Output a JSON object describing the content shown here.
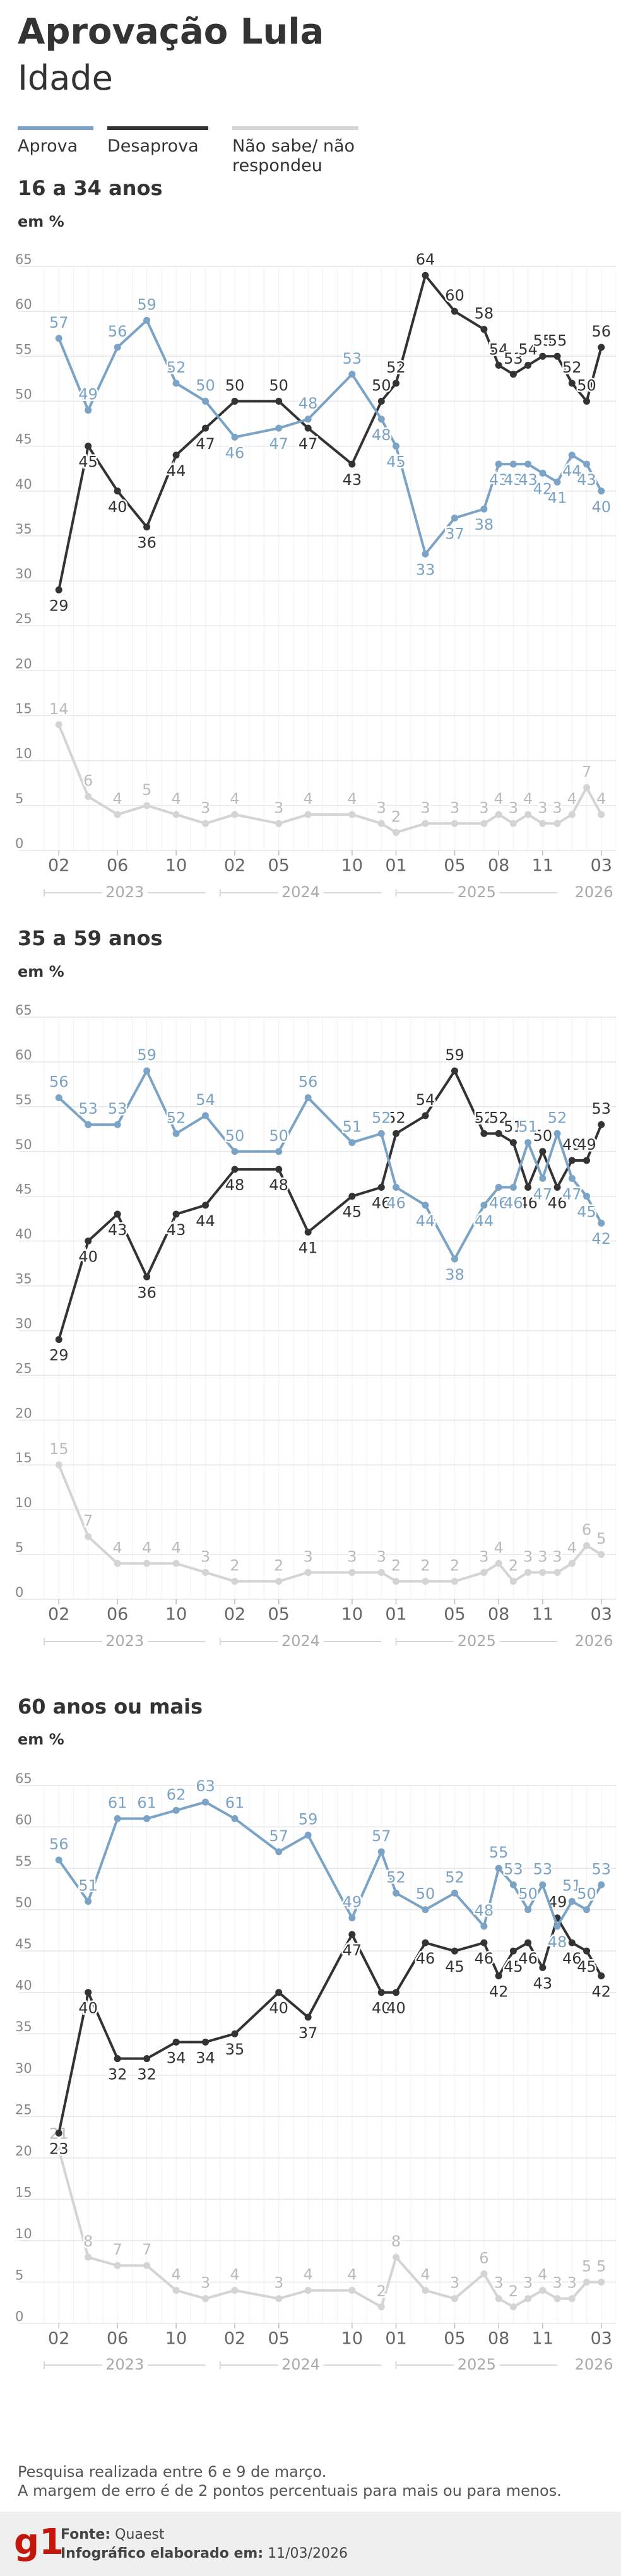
{
  "header": {
    "title": "Aprovação Lula",
    "subtitle": "Idade"
  },
  "chart_data": [
    {
      "type": "line",
      "title": "16 a 34 anos",
      "subtitle": "em %",
      "x": [
        "2023-02",
        "2023-04",
        "2023-06",
        "2023-08",
        "2023-10",
        "2023-12",
        "2024-02",
        "2024-05",
        "2024-07",
        "2024-10",
        "2024-12",
        "2025-01",
        "2025-03",
        "2025-05",
        "2025-07",
        "2025-08",
        "2025-09",
        "2025-10",
        "2025-11",
        "2025-12",
        "2026-01",
        "2026-02",
        "2026-03"
      ],
      "series": [
        {
          "name": "Aprova",
          "color": "#7aa3c6",
          "values": [
            57,
            49,
            56,
            59,
            52,
            50,
            46,
            47,
            48,
            53,
            48,
            45,
            33,
            37,
            38,
            43,
            43,
            43,
            42,
            41,
            44,
            43,
            40
          ]
        },
        {
          "name": "Desaprova",
          "color": "#333333",
          "values": [
            29,
            45,
            40,
            36,
            44,
            47,
            50,
            50,
            47,
            43,
            50,
            52,
            64,
            60,
            58,
            54,
            53,
            54,
            55,
            55,
            52,
            50,
            56
          ]
        },
        {
          "name": "Não sabe/ não respondeu",
          "color": "#d4d4d4",
          "values": [
            14,
            6,
            4,
            5,
            4,
            3,
            4,
            3,
            4,
            4,
            3,
            2,
            3,
            3,
            3,
            4,
            3,
            4,
            3,
            3,
            4,
            7,
            4
          ]
        }
      ],
      "xlim": [
        "2023-01",
        "2026-04"
      ],
      "xticks": [
        {
          "value": "2023-02",
          "label": "02"
        },
        {
          "value": "2023-06",
          "label": "06"
        },
        {
          "value": "2023-10",
          "label": "10"
        },
        {
          "value": "2024-02",
          "label": "02"
        },
        {
          "value": "2024-05",
          "label": "05"
        },
        {
          "value": "2024-10",
          "label": "10"
        },
        {
          "value": "2025-01",
          "label": "01"
        },
        {
          "value": "2025-05",
          "label": "05"
        },
        {
          "value": "2025-08",
          "label": "08"
        },
        {
          "value": "2025-11",
          "label": "11"
        },
        {
          "value": "2026-03",
          "label": "03"
        }
      ],
      "year_labels": [
        "2023",
        "2024",
        "2025",
        "2026"
      ],
      "ylim": [
        0,
        65
      ],
      "yticks": [
        0,
        5,
        10,
        15,
        20,
        25,
        30,
        35,
        40,
        45,
        50,
        55,
        60,
        65
      ],
      "grid": true
    },
    {
      "type": "line",
      "title": "35 a 59 anos",
      "subtitle": "em %",
      "x": [
        "2023-02",
        "2023-04",
        "2023-06",
        "2023-08",
        "2023-10",
        "2023-12",
        "2024-02",
        "2024-05",
        "2024-07",
        "2024-10",
        "2024-12",
        "2025-01",
        "2025-03",
        "2025-05",
        "2025-07",
        "2025-08",
        "2025-09",
        "2025-10",
        "2025-11",
        "2025-12",
        "2026-01",
        "2026-02",
        "2026-03"
      ],
      "series": [
        {
          "name": "Aprova",
          "color": "#7aa3c6",
          "values": [
            56,
            53,
            53,
            59,
            52,
            54,
            50,
            50,
            56,
            51,
            52,
            46,
            44,
            38,
            44,
            46,
            46,
            51,
            47,
            52,
            47,
            45,
            42
          ]
        },
        {
          "name": "Desaprova",
          "color": "#333333",
          "values": [
            29,
            40,
            43,
            36,
            43,
            44,
            48,
            48,
            41,
            45,
            46,
            52,
            54,
            59,
            52,
            52,
            51,
            46,
            50,
            46,
            49,
            49,
            53
          ]
        },
        {
          "name": "Não sabe/ não respondeu",
          "color": "#d4d4d4",
          "values": [
            15,
            7,
            4,
            4,
            4,
            3,
            2,
            2,
            3,
            3,
            3,
            2,
            2,
            2,
            3,
            4,
            2,
            3,
            3,
            3,
            4,
            6,
            5
          ]
        }
      ],
      "xlim": [
        "2023-01",
        "2026-04"
      ],
      "xticks": [
        {
          "value": "2023-02",
          "label": "02"
        },
        {
          "value": "2023-06",
          "label": "06"
        },
        {
          "value": "2023-10",
          "label": "10"
        },
        {
          "value": "2024-02",
          "label": "02"
        },
        {
          "value": "2024-05",
          "label": "05"
        },
        {
          "value": "2024-10",
          "label": "10"
        },
        {
          "value": "2025-01",
          "label": "01"
        },
        {
          "value": "2025-05",
          "label": "05"
        },
        {
          "value": "2025-08",
          "label": "08"
        },
        {
          "value": "2025-11",
          "label": "11"
        },
        {
          "value": "2026-03",
          "label": "03"
        }
      ],
      "year_labels": [
        "2023",
        "2024",
        "2025",
        "2026"
      ],
      "ylim": [
        0,
        65
      ],
      "yticks": [
        0,
        5,
        10,
        15,
        20,
        25,
        30,
        35,
        40,
        45,
        50,
        55,
        60,
        65
      ],
      "grid": true
    },
    {
      "type": "line",
      "title": "60 anos ou mais",
      "subtitle": "em %",
      "x": [
        "2023-02",
        "2023-04",
        "2023-06",
        "2023-08",
        "2023-10",
        "2023-12",
        "2024-02",
        "2024-05",
        "2024-07",
        "2024-10",
        "2024-12",
        "2025-01",
        "2025-03",
        "2025-05",
        "2025-07",
        "2025-08",
        "2025-09",
        "2025-10",
        "2025-11",
        "2025-12",
        "2026-01",
        "2026-02",
        "2026-03"
      ],
      "series": [
        {
          "name": "Aprova",
          "color": "#7aa3c6",
          "values": [
            56,
            51,
            61,
            61,
            62,
            63,
            61,
            57,
            59,
            49,
            57,
            52,
            50,
            52,
            48,
            55,
            53,
            50,
            53,
            48,
            51,
            50,
            53
          ]
        },
        {
          "name": "Desaprova",
          "color": "#333333",
          "values": [
            23,
            40,
            32,
            32,
            34,
            34,
            35,
            40,
            37,
            47,
            40,
            40,
            46,
            45,
            46,
            42,
            45,
            46,
            43,
            49,
            46,
            45,
            42
          ]
        },
        {
          "name": "Não sabe/ não respondeu",
          "color": "#d4d4d4",
          "values": [
            21,
            8,
            7,
            7,
            4,
            3,
            4,
            3,
            4,
            4,
            2,
            8,
            4,
            3,
            6,
            3,
            2,
            3,
            4,
            3,
            3,
            5,
            5
          ]
        }
      ],
      "xlim": [
        "2023-01",
        "2026-04"
      ],
      "xticks": [
        {
          "value": "2023-02",
          "label": "02"
        },
        {
          "value": "2023-06",
          "label": "06"
        },
        {
          "value": "2023-10",
          "label": "10"
        },
        {
          "value": "2024-02",
          "label": "02"
        },
        {
          "value": "2024-05",
          "label": "05"
        },
        {
          "value": "2024-10",
          "label": "10"
        },
        {
          "value": "2025-01",
          "label": "01"
        },
        {
          "value": "2025-05",
          "label": "05"
        },
        {
          "value": "2025-08",
          "label": "08"
        },
        {
          "value": "2025-11",
          "label": "11"
        },
        {
          "value": "2026-03",
          "label": "03"
        }
      ],
      "year_labels": [
        "2023",
        "2024",
        "2025",
        "2026"
      ],
      "ylim": [
        0,
        65
      ],
      "yticks": [
        0,
        5,
        10,
        15,
        20,
        25,
        30,
        35,
        40,
        45,
        50,
        55,
        60,
        65
      ],
      "grid": true
    }
  ],
  "footer": {
    "note": [
      "Pesquisa realizada entre 6 e 9 de março.",
      "A margem de erro é de 2 pontos percentuais para mais ou para menos."
    ],
    "source_label": "Fonte:",
    "source": "Quaest",
    "credit_label": "Infográfico elaborado em:",
    "credit_date": "11/03/2026",
    "logo": "g1"
  }
}
